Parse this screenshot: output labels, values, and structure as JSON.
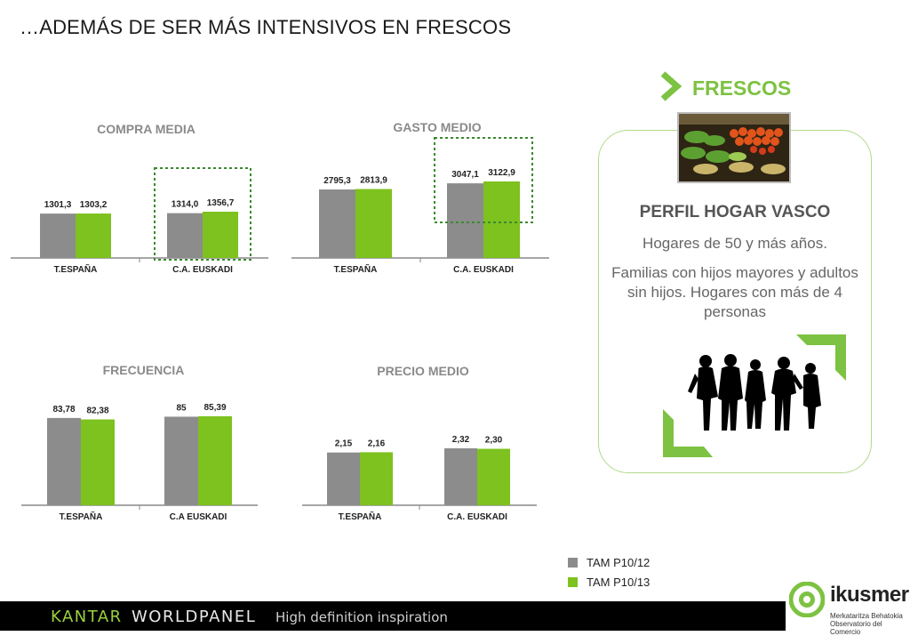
{
  "page_title": "…ADEMÁS DE SER MÁS INTENSIVOS EN FRESCOS",
  "fresh_label": "FRESCOS",
  "profile": {
    "title": "PERFIL HOGAR VASCO",
    "line1": "Hogares de 50 y más años.",
    "line2": "Familias con hijos mayores y adultos sin hijos. Hogares con más de 4 personas"
  },
  "legend": [
    {
      "name": "TAM P10/12",
      "color": "#8c8c8c"
    },
    {
      "name": "TAM P10/13",
      "color": "#7dc21e"
    }
  ],
  "footer": {
    "brand_part1": "KANTAR",
    "brand_part2": "WORLDPANEL",
    "tagline": "High definition inspiration"
  },
  "logo": {
    "name": "ikusmer",
    "sub1": "Merkataritza Behatokia",
    "sub2": "Observatorio del Comercio"
  },
  "chart_data": [
    {
      "type": "bar",
      "title": "COMPRA MEDIA",
      "categories": [
        "T.ESPAÑA",
        "C.A. EUSKADI"
      ],
      "series": [
        {
          "name": "TAM P10/12",
          "values": [
            1301.3,
            1314.0
          ]
        },
        {
          "name": "TAM P10/13",
          "values": [
            1303.2,
            1356.7
          ]
        }
      ],
      "labels": [
        [
          "1301,3",
          "1314,0"
        ],
        [
          "1303,2",
          "1356,7"
        ]
      ],
      "highlight_category": 1
    },
    {
      "type": "bar",
      "title": "GASTO MEDIO",
      "categories": [
        "T.ESPAÑA",
        "C.A. EUSKADI"
      ],
      "series": [
        {
          "name": "TAM P10/12",
          "values": [
            2795.3,
            3047.1
          ]
        },
        {
          "name": "TAM P10/13",
          "values": [
            2813.9,
            3122.9
          ]
        }
      ],
      "labels": [
        [
          "2795,3",
          "3047,1"
        ],
        [
          "2813,9",
          "3122,9"
        ]
      ],
      "highlight_category": 1
    },
    {
      "type": "bar",
      "title": "FRECUENCIA",
      "categories": [
        "T.ESPAÑA",
        "C.A EUSKADI"
      ],
      "series": [
        {
          "name": "TAM P10/12",
          "values": [
            83.78,
            85
          ]
        },
        {
          "name": "TAM P10/13",
          "values": [
            82.38,
            85.39
          ]
        }
      ],
      "labels": [
        [
          "83,78",
          "85"
        ],
        [
          "82,38",
          "85,39"
        ]
      ],
      "highlight_category": null
    },
    {
      "type": "bar",
      "title": "PRECIO MEDIO",
      "categories": [
        "T.ESPAÑA",
        "C.A. EUSKADI"
      ],
      "series": [
        {
          "name": "TAM P10/12",
          "values": [
            2.15,
            2.32
          ]
        },
        {
          "name": "TAM P10/13",
          "values": [
            2.16,
            2.3
          ]
        }
      ],
      "labels": [
        [
          "2,15",
          "2,32"
        ],
        [
          "2,16",
          "2,30"
        ]
      ],
      "highlight_category": null
    }
  ]
}
